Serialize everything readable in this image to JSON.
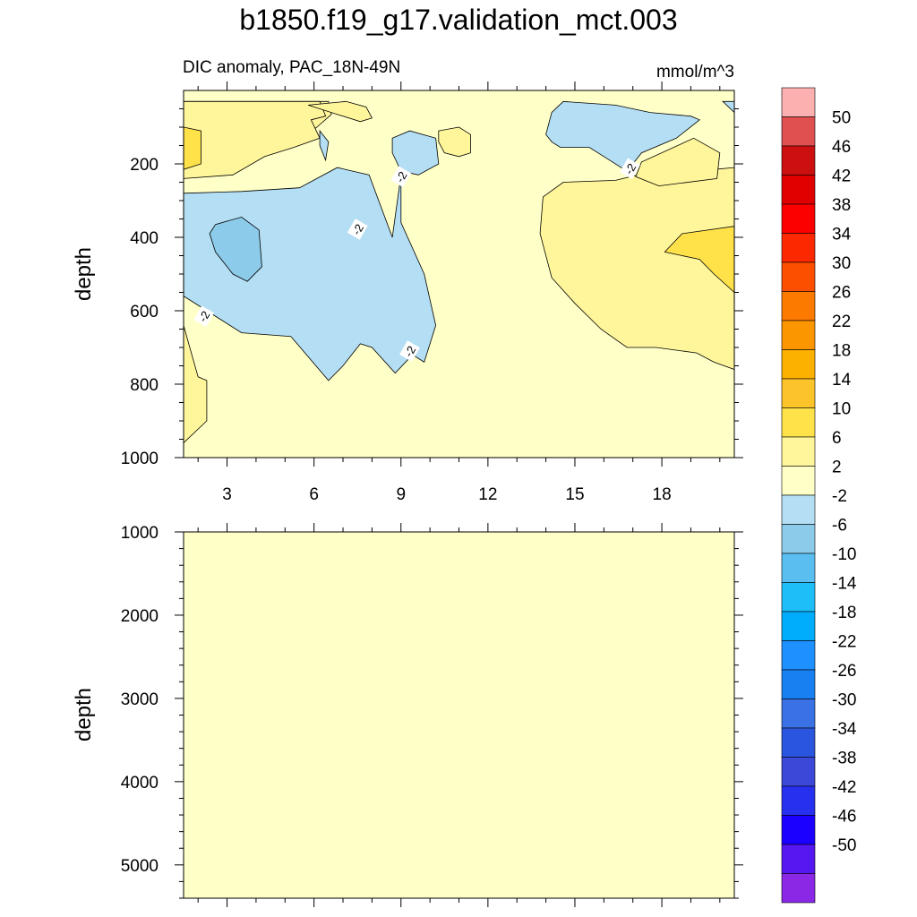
{
  "title": "b1850.f19_g17.validation_mct.003",
  "subtitle_left": "DIC anomaly, PAC_18N-49N",
  "units": "mmol/m^3",
  "colors": {
    "background_fill": "#ffffc8",
    "contour_line": "#000000",
    "levels": {
      "2_6": "#fff59a",
      "6_10": "#ffe24a",
      "10_14": "#fcc32a",
      "14_18": "#fcb000",
      "18_22": "#fc9600",
      "22_26": "#fc7a00",
      "26_30": "#fc5000",
      "30_34": "#fc2800",
      "34_38": "#fc0000",
      "38_42": "#e00000",
      "42_46": "#cc1010",
      "46_50": "#e05050",
      "above_50": "#fcb0b0",
      "m2_m6": "#b4def4",
      "m6_m10": "#8ccbea",
      "m10_m14": "#5abff0",
      "m14_m18": "#1ebff8",
      "m18_m22": "#00acfc",
      "m22_m26": "#1e90ff",
      "m26_m30": "#1880f0",
      "m30_m34": "#3a72e6",
      "m34_m38": "#2a55de",
      "m38_m42": "#3c48d8",
      "m42_m46": "#2830f0",
      "m46_m50": "#1c00ff",
      "below_m50": "#5518f0",
      "lowest": "#8a28e6"
    }
  },
  "colorbar": {
    "labels": [
      "50",
      "46",
      "42",
      "38",
      "34",
      "30",
      "26",
      "22",
      "18",
      "14",
      "10",
      "6",
      "2",
      "-2",
      "-6",
      "-10",
      "-14",
      "-18",
      "-22",
      "-26",
      "-30",
      "-34",
      "-38",
      "-42",
      "-46",
      "-50"
    ],
    "colors_top_to_bottom": [
      "#fcb0b0",
      "#e05050",
      "#cc1010",
      "#e00000",
      "#fc0000",
      "#fc2800",
      "#fc5000",
      "#fc7a00",
      "#fc9600",
      "#fcb000",
      "#fcc32a",
      "#ffe24a",
      "#fff59a",
      "#ffffc8",
      "#b4def4",
      "#8ccbea",
      "#5abff0",
      "#1ebff8",
      "#00acfc",
      "#1e90ff",
      "#1880f0",
      "#3a72e6",
      "#2a55de",
      "#3c48d8",
      "#2830f0",
      "#1c00ff",
      "#5518f0",
      "#8a28e6"
    ]
  },
  "chart_data": [
    {
      "type": "contour",
      "panel": "top",
      "title": "DIC anomaly, PAC_18N-49N",
      "units": "mmol/m^3",
      "xlabel": "",
      "ylabel": "depth",
      "xlim": [
        1.5,
        20.5
      ],
      "ylim": [
        1000,
        0
      ],
      "y_reversed": true,
      "xticks": [
        3,
        6,
        9,
        12,
        15,
        18
      ],
      "yticks": [
        200,
        400,
        600,
        800,
        1000
      ],
      "contour_levels": [
        -50,
        -46,
        -42,
        -38,
        -34,
        -30,
        -26,
        -22,
        -18,
        -14,
        -10,
        -6,
        -2,
        2,
        6,
        10,
        14,
        18,
        22,
        26,
        30,
        34,
        38,
        42,
        46,
        50
      ],
      "regions": [
        {
          "level": "2_6",
          "points": [
            [
              1.5,
              30
            ],
            [
              3.6,
              30
            ],
            [
              3.7,
              90
            ],
            [
              4.5,
              150
            ],
            [
              5.6,
              130
            ],
            [
              6.1,
              100
            ],
            [
              6.6,
              65
            ],
            [
              6.5,
              30
            ],
            [
              1.5,
              30
            ]
          ]
        },
        {
          "level": "2_6",
          "points": [
            [
              1.5,
              30
            ],
            [
              1.5,
              240
            ],
            [
              3.2,
              230
            ],
            [
              4.3,
              180
            ],
            [
              5.3,
              155
            ],
            [
              6.2,
              130
            ],
            [
              5.9,
              80
            ],
            [
              6.4,
              70
            ],
            [
              6.2,
              30
            ]
          ]
        },
        {
          "level": "2_6",
          "points": [
            [
              5.8,
              40
            ],
            [
              7.1,
              30
            ],
            [
              7.8,
              45
            ],
            [
              8.0,
              75
            ],
            [
              7.6,
              85
            ],
            [
              6.8,
              65
            ],
            [
              5.8,
              40
            ]
          ]
        },
        {
          "level": "2_6",
          "points": [
            [
              10.3,
              110
            ],
            [
              11.0,
              100
            ],
            [
              11.4,
              120
            ],
            [
              11.4,
              170
            ],
            [
              11.0,
              180
            ],
            [
              10.5,
              170
            ],
            [
              10.3,
              140
            ],
            [
              10.3,
              110
            ]
          ]
        },
        {
          "level": "2_6",
          "points": [
            [
              13.9,
              290
            ],
            [
              14.6,
              250
            ],
            [
              16.4,
              245
            ],
            [
              17.7,
              220
            ],
            [
              19.8,
              215
            ],
            [
              20.5,
              210
            ],
            [
              20.5,
              760
            ],
            [
              19.8,
              740
            ],
            [
              19.2,
              715
            ],
            [
              17.8,
              700
            ],
            [
              16.8,
              700
            ],
            [
              15.9,
              650
            ],
            [
              15.0,
              580
            ],
            [
              14.2,
              510
            ],
            [
              13.8,
              390
            ],
            [
              13.9,
              290
            ]
          ]
        },
        {
          "level": "6_10",
          "points": [
            [
              18.1,
              440
            ],
            [
              18.7,
              390
            ],
            [
              20.5,
              370
            ],
            [
              20.5,
              550
            ],
            [
              19.8,
              500
            ],
            [
              19.3,
              460
            ],
            [
              18.1,
              440
            ]
          ]
        },
        {
          "level": "6_10",
          "points": [
            [
              1.5,
              100
            ],
            [
              2.1,
              110
            ],
            [
              2.1,
              200
            ],
            [
              1.5,
              215
            ],
            [
              1.5,
              100
            ]
          ]
        },
        {
          "level": "2_6",
          "points": [
            [
              1.5,
              640
            ],
            [
              2.0,
              780
            ],
            [
              2.3,
              790
            ],
            [
              2.3,
              900
            ],
            [
              1.5,
              960
            ],
            [
              1.5,
              640
            ]
          ]
        },
        {
          "level": "2_6",
          "points": [
            [
              19.1,
              130
            ],
            [
              20.0,
              170
            ],
            [
              19.9,
              240
            ],
            [
              17.9,
              260
            ],
            [
              17.1,
              235
            ],
            [
              17.3,
              195
            ],
            [
              19.1,
              130
            ]
          ]
        },
        {
          "level": "m2_m6",
          "points": [
            [
              1.5,
              280
            ],
            [
              3.5,
              275
            ],
            [
              5.5,
              265
            ],
            [
              6.8,
              210
            ],
            [
              7.9,
              230
            ],
            [
              8.7,
              400
            ],
            [
              9.0,
              230
            ],
            [
              9.0,
              360
            ],
            [
              9.8,
              500
            ],
            [
              10.2,
              640
            ],
            [
              9.8,
              740
            ],
            [
              9.4,
              720
            ],
            [
              8.8,
              770
            ],
            [
              8.0,
              700
            ],
            [
              7.6,
              690
            ],
            [
              7.0,
              750
            ],
            [
              6.5,
              790
            ],
            [
              5.2,
              670
            ],
            [
              3.5,
              660
            ],
            [
              1.5,
              560
            ],
            [
              1.5,
              280
            ]
          ]
        },
        {
          "level": "m2_m6",
          "points": [
            [
              8.7,
              170
            ],
            [
              8.7,
              130
            ],
            [
              9.3,
              110
            ],
            [
              10.2,
              130
            ],
            [
              10.3,
              200
            ],
            [
              9.6,
              230
            ],
            [
              9.0,
              220
            ],
            [
              8.7,
              170
            ]
          ]
        },
        {
          "level": "m2_m6",
          "points": [
            [
              6.2,
              110
            ],
            [
              6.5,
              140
            ],
            [
              6.4,
              190
            ],
            [
              6.2,
              150
            ],
            [
              6.2,
              110
            ]
          ]
        },
        {
          "level": "m2_m6",
          "points": [
            [
              14.2,
              60
            ],
            [
              14.6,
              30
            ],
            [
              16.4,
              40
            ],
            [
              17.6,
              60
            ],
            [
              19.0,
              70
            ],
            [
              19.3,
              80
            ],
            [
              18.5,
              130
            ],
            [
              17.3,
              170
            ],
            [
              16.8,
              220
            ],
            [
              16.0,
              180
            ],
            [
              15.5,
              155
            ],
            [
              14.5,
              155
            ],
            [
              14.2,
              140
            ],
            [
              14.0,
              120
            ],
            [
              14.2,
              60
            ]
          ]
        },
        {
          "level": "m2_m6",
          "points": [
            [
              20.1,
              30
            ],
            [
              20.5,
              30
            ],
            [
              20.5,
              60
            ],
            [
              20.1,
              30
            ]
          ]
        },
        {
          "level": "m6_m10",
          "points": [
            [
              2.4,
              390
            ],
            [
              2.6,
              365
            ],
            [
              3.5,
              345
            ],
            [
              4.1,
              380
            ],
            [
              4.2,
              480
            ],
            [
              3.7,
              520
            ],
            [
              3.2,
              500
            ],
            [
              2.6,
              440
            ],
            [
              2.4,
              390
            ]
          ]
        }
      ],
      "line_labels": [
        {
          "text": "-2",
          "x": 9.0,
          "y": 235
        },
        {
          "text": "-2",
          "x": 7.5,
          "y": 378
        },
        {
          "text": "-2",
          "x": 2.2,
          "y": 615
        },
        {
          "text": "-2",
          "x": 9.3,
          "y": 710
        },
        {
          "text": "-2",
          "x": 16.9,
          "y": 213
        }
      ]
    },
    {
      "type": "contour",
      "panel": "bottom",
      "xlabel": "",
      "ylabel": "depth",
      "xlim": [
        1.5,
        20.5
      ],
      "ylim": [
        5400,
        1000
      ],
      "y_reversed": true,
      "yticks": [
        1000,
        2000,
        3000,
        4000,
        5000
      ],
      "fill_level": "-2 to 2",
      "regions": []
    }
  ]
}
